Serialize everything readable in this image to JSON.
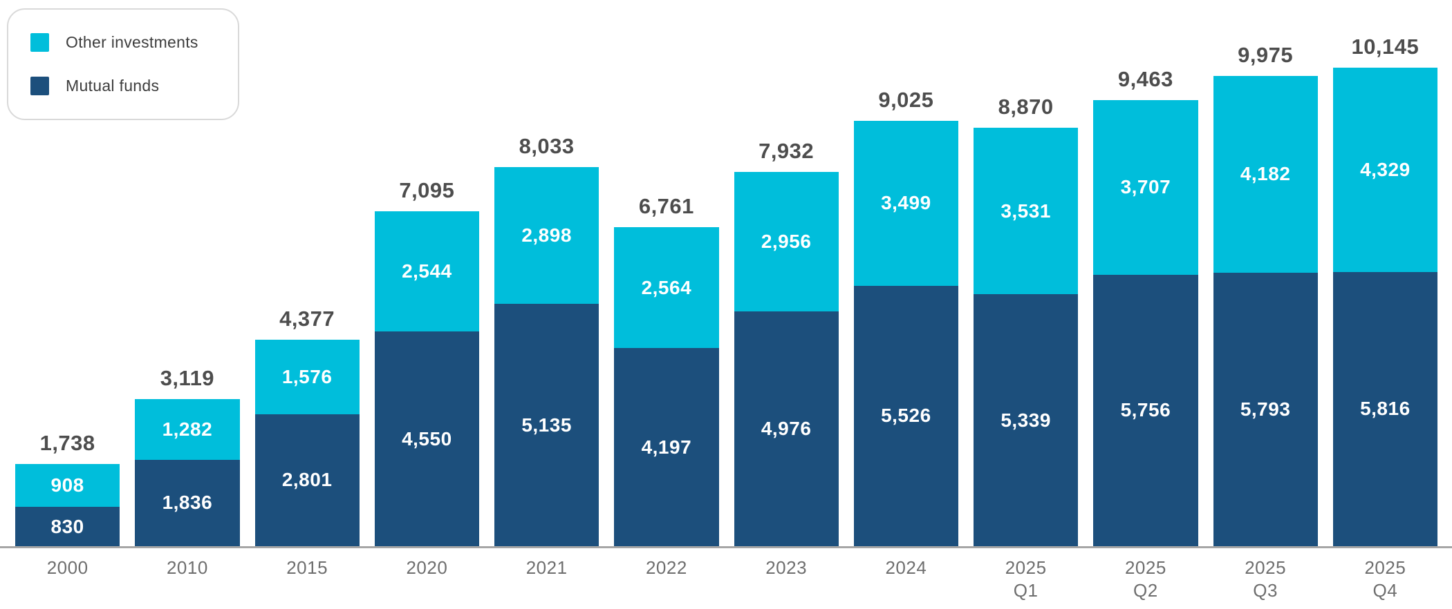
{
  "legend": {
    "items": [
      {
        "label": "Other investments",
        "color": "#00bedb"
      },
      {
        "label": "Mutual funds",
        "color": "#1c4f7c"
      }
    ]
  },
  "chart_data": {
    "type": "bar",
    "stacked": true,
    "title": "",
    "xlabel": "",
    "ylabel": "",
    "grid": false,
    "legend_position": "top-left",
    "axis_line_color": "#a6a6a6",
    "total_label_color": "#4d4d4d",
    "value_label_color": "#ffffff",
    "x_tick_color": "#6e6e6e",
    "ylim": [
      0,
      10145
    ],
    "categories": [
      "2000",
      "2010",
      "2015",
      "2020",
      "2021",
      "2022",
      "2023",
      "2024",
      "2025 Q1",
      "2025 Q2",
      "2025 Q3",
      "2025 Q4"
    ],
    "category_label_lines": [
      [
        "2000"
      ],
      [
        "2010"
      ],
      [
        "2015"
      ],
      [
        "2020"
      ],
      [
        "2021"
      ],
      [
        "2022"
      ],
      [
        "2023"
      ],
      [
        "2024"
      ],
      [
        "2025",
        "Q1"
      ],
      [
        "2025",
        "Q2"
      ],
      [
        "2025",
        "Q3"
      ],
      [
        "2025",
        "Q4"
      ]
    ],
    "series": [
      {
        "name": "Mutual funds",
        "color": "#1c4f7c",
        "stack_order": "bottom",
        "values": [
          830,
          1836,
          2801,
          4550,
          5135,
          4197,
          4976,
          5526,
          5339,
          5756,
          5793,
          5816
        ]
      },
      {
        "name": "Other investments",
        "color": "#00bedb",
        "stack_order": "top",
        "values": [
          908,
          1282,
          1576,
          2544,
          2898,
          2564,
          2956,
          3499,
          3531,
          3707,
          4182,
          4329
        ]
      }
    ],
    "totals": [
      1738,
      3119,
      4377,
      7095,
      8033,
      6761,
      7932,
      9025,
      8870,
      9463,
      9975,
      10145
    ]
  }
}
